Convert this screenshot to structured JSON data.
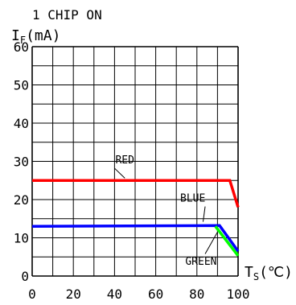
{
  "chart_data": {
    "type": "line",
    "title": "1 CHIP ON",
    "ylabel": "I_F(mA)",
    "ylabel_main": "I",
    "ylabel_sub": "F",
    "ylabel_rest": "(mA)",
    "xlabel": "T_S(℃)",
    "xlabel_main": "T",
    "xlabel_sub": "S",
    "xlabel_rest": "(℃)",
    "xlim": [
      0,
      100
    ],
    "ylim": [
      0,
      60
    ],
    "x_ticks": [
      0,
      20,
      40,
      60,
      80,
      100
    ],
    "x_tick_labels": [
      "0",
      "20",
      "40",
      "60",
      "80",
      "100"
    ],
    "y_ticks": [
      0,
      10,
      20,
      30,
      40,
      50,
      60
    ],
    "y_tick_labels": [
      "0",
      "10",
      "20",
      "30",
      "40",
      "50",
      "60"
    ],
    "grid": true,
    "series": [
      {
        "name": "RED",
        "color": "#ff0000",
        "x": [
          0,
          96,
          100
        ],
        "y": [
          25,
          25,
          18
        ]
      },
      {
        "name": "BLUE",
        "color": "#0000ff",
        "x": [
          0,
          91,
          100
        ],
        "y": [
          13,
          13.2,
          6.5
        ]
      },
      {
        "name": "GREEN",
        "color": "#00ff00",
        "x": [
          89,
          100
        ],
        "y": [
          13,
          5.3
        ]
      }
    ]
  }
}
